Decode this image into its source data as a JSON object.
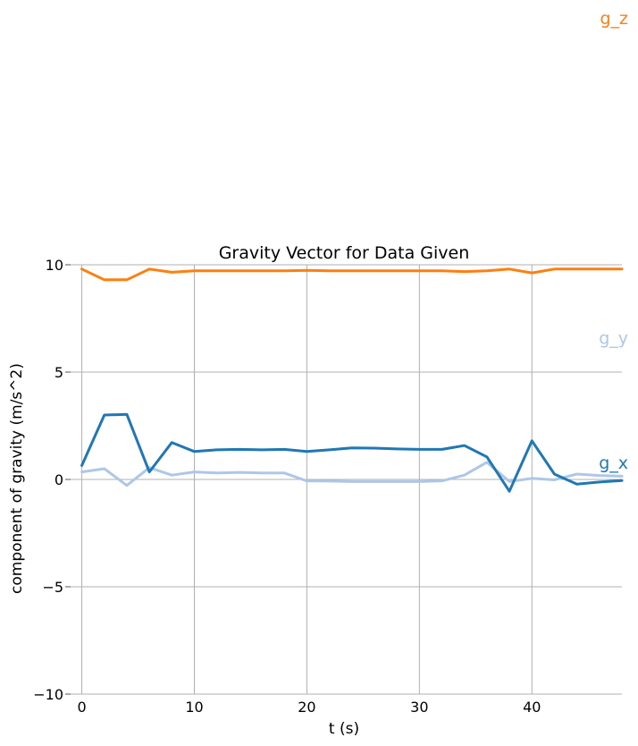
{
  "chart_data": {
    "type": "line",
    "title": "Gravity Vector for Data Given",
    "xlabel": "t (s)",
    "ylabel": "component of gravity (m/s^2)",
    "xlim": [
      -1,
      48
    ],
    "ylim": [
      -10,
      10
    ],
    "xticks": [
      0,
      10,
      20,
      30,
      40
    ],
    "yticks": [
      -10,
      -5,
      0,
      5,
      10
    ],
    "ytick_labels": [
      "−10",
      "−5",
      "0",
      "5",
      "10"
    ],
    "xtick_labels": [
      "0",
      "10",
      "20",
      "30",
      "40"
    ],
    "grid": true,
    "legend": "direct labels at right",
    "x": [
      0,
      2,
      4,
      6,
      8,
      10,
      12,
      14,
      16,
      18,
      20,
      22,
      24,
      26,
      28,
      30,
      32,
      34,
      36,
      38,
      40,
      42,
      44,
      46,
      48
    ],
    "series": [
      {
        "name": "g_z",
        "color": "#ff7f0e",
        "values": [
          9.8,
          9.3,
          9.3,
          9.8,
          9.65,
          9.72,
          9.72,
          9.72,
          9.72,
          9.72,
          9.74,
          9.72,
          9.72,
          9.72,
          9.72,
          9.72,
          9.72,
          9.68,
          9.72,
          9.8,
          9.62,
          9.8,
          9.8,
          9.8,
          9.8
        ],
        "label_value": 21.5
      },
      {
        "name": "g_y",
        "color": "#aec7e8",
        "values": [
          0.35,
          0.5,
          -0.28,
          0.55,
          0.2,
          0.35,
          0.3,
          0.33,
          0.3,
          0.3,
          -0.07,
          -0.08,
          -0.1,
          -0.1,
          -0.1,
          -0.1,
          -0.07,
          0.2,
          0.8,
          -0.1,
          0.05,
          -0.02,
          0.25,
          0.18,
          0.15
        ],
        "label_value": 6.6
      },
      {
        "name": "g_x",
        "color": "#1f77b4",
        "values": [
          0.65,
          3.0,
          3.03,
          0.35,
          1.72,
          1.3,
          1.38,
          1.4,
          1.38,
          1.4,
          1.3,
          1.38,
          1.47,
          1.46,
          1.42,
          1.4,
          1.4,
          1.58,
          1.05,
          -0.55,
          1.8,
          0.25,
          -0.22,
          -0.12,
          -0.05
        ],
        "label_value": 0.8
      }
    ]
  }
}
